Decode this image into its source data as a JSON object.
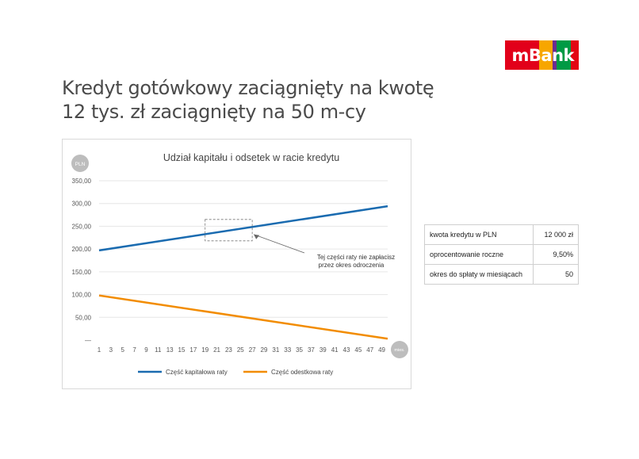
{
  "brand": {
    "name": "mBank",
    "colors": [
      "#E2001A",
      "#F7A600",
      "#6C2C91",
      "#009A44",
      "#E30613"
    ]
  },
  "page_title": {
    "line1": "Kredyt gotówkowy zaciągnięty na kwotę",
    "line2": "12 tys. zł zaciągnięty na 50 m-cy"
  },
  "chart_data": {
    "type": "line",
    "title": "Udział kapitału i odsetek w racie kredytu",
    "ylabel": "PLN",
    "xlabel": "mies.",
    "x_ticks": [
      1,
      3,
      5,
      7,
      9,
      11,
      13,
      15,
      17,
      19,
      21,
      23,
      25,
      27,
      29,
      31,
      33,
      35,
      37,
      39,
      41,
      43,
      45,
      47,
      49
    ],
    "xlim": [
      1,
      50
    ],
    "y_ticks": [
      "—",
      "50,00",
      "100,00",
      "150,00",
      "200,00",
      "250,00",
      "300,00",
      "350,00"
    ],
    "ylim": [
      0,
      350
    ],
    "grid": true,
    "legend": "bottom",
    "series": [
      {
        "name": "Część kapitałowa raty",
        "color": "#1A6BB0",
        "x": [
          1,
          50
        ],
        "values": [
          197,
          294
        ]
      },
      {
        "name": "Część odestkowa raty",
        "color": "#F28C00",
        "x": [
          1,
          50
        ],
        "values": [
          98,
          3
        ]
      }
    ],
    "annotation": {
      "line1": "Tej części raty nie zapłacisz",
      "line2": "przez okres odroczenia",
      "target_x": [
        19,
        27
      ],
      "target_y": [
        218,
        265
      ]
    }
  },
  "params_table": [
    {
      "label": "kwota kredytu w PLN",
      "value": "12 000 zł"
    },
    {
      "label": "oprocentowanie roczne",
      "value": "9,50%"
    },
    {
      "label": "okres do spłaty w miesiącach",
      "value": "50"
    }
  ]
}
